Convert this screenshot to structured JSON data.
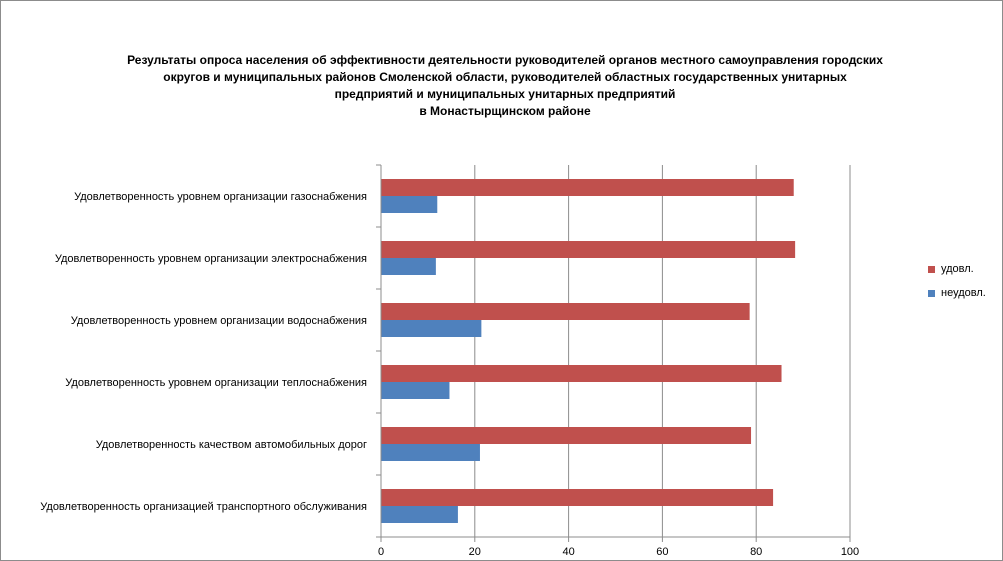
{
  "title_lines": [
    "Результаты опроса населения об эффективности деятельности руководителей органов местного самоуправления городских",
    "округов и муниципальных районов Смоленской области, руководителей областных государственных унитарных",
    "предприятий и  муниципальных унитарных предприятий",
    "в Монастырщинском районе"
  ],
  "chart_data": {
    "type": "bar",
    "orientation": "horizontal",
    "title": "Результаты опроса населения об эффективности деятельности руководителей органов местного самоуправления городских округов и муниципальных районов Смоленской области, руководителей областных государственных унитарных предприятий и  муниципальных унитарных предприятий в Монастырщинском районе",
    "categories": [
      "Удовлетворенность  уровнем  организации газоснабжения",
      "Удовлетворенность  уровнем  организации электроснабжения",
      "Удовлетворенность  уровнем  организации водоснабжения",
      "Удовлетворенность  уровнем  организации теплоснабжения",
      "Удовлетворенность  качеством  автомобильных дорог",
      "Удовлетворенность  организацией  транспортного обслуживания"
    ],
    "series": [
      {
        "name": "удовл.",
        "color": "#c0504d",
        "values": [
          88,
          88.3,
          78.6,
          85.4,
          78.9,
          83.6
        ]
      },
      {
        "name": "неудовл.",
        "color": "#4f81bd",
        "values": [
          12,
          11.7,
          21.4,
          14.6,
          21.1,
          16.4
        ]
      }
    ],
    "xlim": [
      0,
      100
    ],
    "xticks": [
      0,
      20,
      40,
      60,
      80,
      100
    ],
    "vertical_grid": true,
    "legend_position": "right"
  }
}
